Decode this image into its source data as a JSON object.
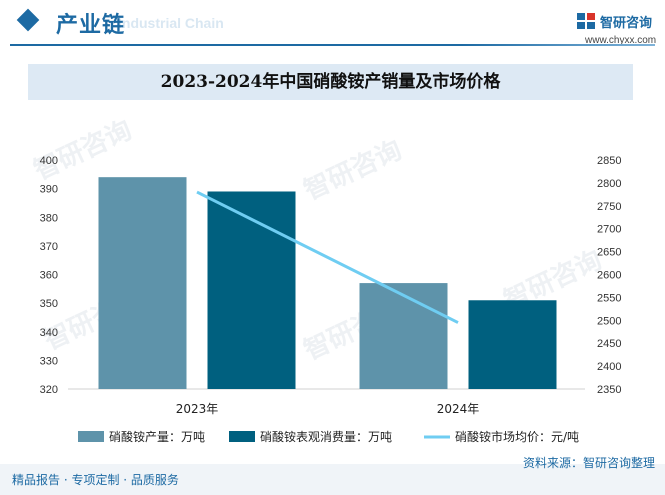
{
  "header": {
    "section_title": "产业链",
    "section_watermark": "Industrial Chain",
    "logo_text": "智研咨询",
    "logo_url": "www.chyxx.com"
  },
  "watermark": {
    "text": "智研咨询"
  },
  "chart_data": {
    "type": "bar",
    "title": "2023-2024年中国硝酸铵产销量及市场价格",
    "categories": [
      "2023年",
      "2024年"
    ],
    "series": [
      {
        "name": "硝酸铵产量：万吨",
        "axis": "left",
        "kind": "bar",
        "color": "#5e93aa",
        "values": [
          394,
          357
        ]
      },
      {
        "name": "硝酸铵表观消费量：万吨",
        "axis": "left",
        "kind": "bar",
        "color": "#00607f",
        "values": [
          389,
          351
        ]
      },
      {
        "name": "硝酸铵市场均价：元/吨",
        "axis": "right",
        "kind": "line",
        "color": "#6fcdf2",
        "values": [
          2780,
          2495
        ]
      }
    ],
    "y_left": {
      "min": 320,
      "max": 400,
      "ticks": [
        "320",
        "330",
        "340",
        "350",
        "360",
        "370",
        "380",
        "390",
        "400"
      ]
    },
    "y_right": {
      "min": 2350,
      "max": 2850,
      "ticks": [
        "2350",
        "2400",
        "2450",
        "2500",
        "2550",
        "2600",
        "2650",
        "2700",
        "2750",
        "2800",
        "2850"
      ]
    },
    "legend_position": "bottom",
    "grid": false
  },
  "footer": {
    "left": "精品报告 · 专项定制 · 品质服务",
    "right": "资料来源：智研咨询整理"
  }
}
